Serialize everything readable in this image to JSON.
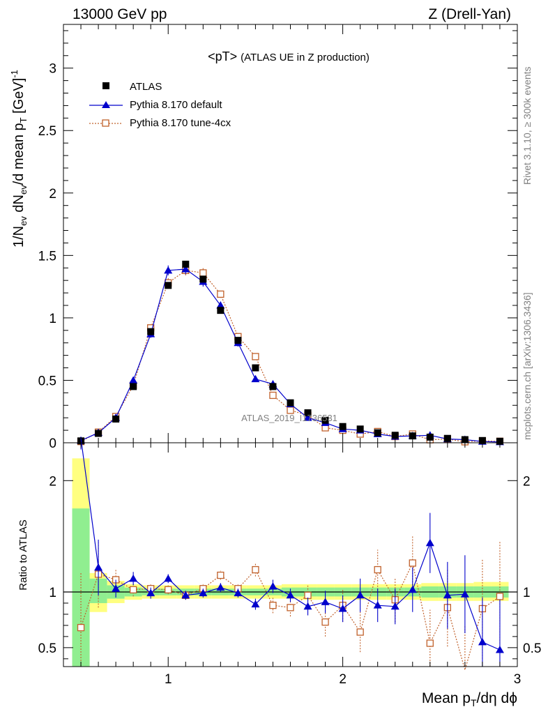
{
  "header": {
    "left": "13000 GeV pp",
    "right": "Z (Drell-Yan)"
  },
  "side": {
    "top": "Rivet 3.1.10, ≥ 300k events",
    "bottom": "mcplots.cern.ch [arXiv:1306.3436]"
  },
  "watermark": "ATLAS_2019_I1736531",
  "chart_data": [
    {
      "type": "line",
      "title": "<pT>",
      "subtitle": "(ATLAS UE in Z production)",
      "ylabel": {
        "a": "1/N",
        "a_sub": "ev",
        "b": " dN",
        "b_sub": "ev",
        "c": "/d mean p",
        "c_sub": "T",
        "d": " [GeV]",
        "d_sup": "-1"
      },
      "xlabel": {
        "a": "Mean p",
        "a_sub": "T",
        "b": "/dη dϕ"
      },
      "xlim": [
        0.4,
        3.0
      ],
      "ylim": [
        0,
        3.35
      ],
      "xticks": [
        "1",
        "2",
        "3"
      ],
      "yticks": [
        "0",
        "0.5",
        "1",
        "1.5",
        "2",
        "2.5",
        "3"
      ],
      "legend": {
        "placement": "top-left",
        "entries": [
          "ATLAS",
          "Pythia 8.170 default",
          "Pythia 8.170 tune-4cx"
        ]
      },
      "series": [
        {
          "name": "ATLAS",
          "color": "#000000",
          "marker": "square",
          "x": [
            0.5,
            0.6,
            0.7,
            0.8,
            0.9,
            1.0,
            1.1,
            1.2,
            1.3,
            1.4,
            1.5,
            1.6,
            1.7,
            1.8,
            1.9,
            2.0,
            2.1,
            2.2,
            2.3,
            2.4,
            2.5,
            2.6,
            2.7,
            2.8,
            2.9
          ],
          "y": [
            0.015,
            0.075,
            0.19,
            0.45,
            0.89,
            1.26,
            1.43,
            1.31,
            1.06,
            0.82,
            0.6,
            0.45,
            0.32,
            0.24,
            0.18,
            0.13,
            0.11,
            0.08,
            0.06,
            0.055,
            0.045,
            0.035,
            0.025,
            0.018,
            0.012
          ]
        },
        {
          "name": "Pythia 8.170 default",
          "color": "#0000cc",
          "marker": "triangle",
          "x": [
            0.5,
            0.6,
            0.7,
            0.8,
            0.9,
            1.0,
            1.1,
            1.2,
            1.3,
            1.4,
            1.5,
            1.6,
            1.7,
            1.8,
            1.9,
            2.0,
            2.1,
            2.2,
            2.3,
            2.4,
            2.5,
            2.6,
            2.7,
            2.8,
            2.9
          ],
          "y": [
            0.018,
            0.08,
            0.2,
            0.5,
            0.87,
            1.38,
            1.39,
            1.29,
            1.1,
            0.8,
            0.51,
            0.47,
            0.31,
            0.2,
            0.16,
            0.11,
            0.1,
            0.07,
            0.05,
            0.055,
            0.06,
            0.03,
            0.025,
            0.01,
            0.006
          ],
          "yerr": [
            0.005,
            0.01,
            0.015,
            0.02,
            0.03,
            0.04,
            0.04,
            0.04,
            0.03,
            0.03,
            0.02,
            0.02,
            0.015,
            0.012,
            0.01,
            0.01,
            0.008,
            0.007,
            0.006,
            0.006,
            0.006,
            0.005,
            0.005,
            0.004,
            0.003
          ]
        },
        {
          "name": "Pythia 8.170 tune-4cx",
          "color": "#c0602a",
          "marker": "open-square",
          "x": [
            0.5,
            0.6,
            0.7,
            0.8,
            0.9,
            1.0,
            1.1,
            1.2,
            1.3,
            1.4,
            1.5,
            1.6,
            1.7,
            1.8,
            1.9,
            2.0,
            2.1,
            2.2,
            2.3,
            2.4,
            2.5,
            2.6,
            2.7,
            2.8,
            2.9
          ],
          "y": [
            0.01,
            0.085,
            0.21,
            0.46,
            0.92,
            1.28,
            1.38,
            1.36,
            1.19,
            0.85,
            0.69,
            0.38,
            0.26,
            0.22,
            0.12,
            0.1,
            0.07,
            0.09,
            0.05,
            0.07,
            0.024,
            0.03,
            0.008,
            0.015,
            0.012
          ],
          "yerr": [
            0.005,
            0.01,
            0.015,
            0.02,
            0.03,
            0.04,
            0.04,
            0.04,
            0.03,
            0.03,
            0.025,
            0.02,
            0.015,
            0.012,
            0.01,
            0.01,
            0.008,
            0.008,
            0.006,
            0.007,
            0.006,
            0.005,
            0.005,
            0.004,
            0.003
          ]
        }
      ]
    },
    {
      "type": "line",
      "ylabel": "Ratio to ATLAS",
      "xlim": [
        0.4,
        3.0
      ],
      "ylim": [
        0.33,
        2.34
      ],
      "yticks": [
        "0.5",
        "1",
        "2"
      ],
      "bands": {
        "colors": {
          "stat": "#90ee90",
          "total": "#ffff80"
        },
        "edges": [
          0.45,
          0.55,
          0.65,
          0.75,
          0.85,
          0.95,
          1.05,
          1.15,
          1.25,
          1.35,
          1.45,
          1.55,
          1.65,
          1.75,
          1.85,
          1.95,
          2.05,
          2.15,
          2.25,
          2.35,
          2.45,
          2.55,
          2.65,
          2.75,
          2.85,
          2.95
        ],
        "green_lo": [
          0.33,
          0.9,
          0.94,
          0.96,
          0.97,
          0.97,
          0.97,
          0.97,
          0.97,
          0.97,
          0.97,
          0.97,
          0.96,
          0.96,
          0.96,
          0.96,
          0.96,
          0.96,
          0.96,
          0.96,
          0.95,
          0.95,
          0.95,
          0.95,
          0.95
        ],
        "green_hi": [
          1.75,
          1.12,
          1.06,
          1.04,
          1.03,
          1.03,
          1.03,
          1.03,
          1.03,
          1.03,
          1.03,
          1.03,
          1.04,
          1.04,
          1.04,
          1.04,
          1.04,
          1.04,
          1.04,
          1.04,
          1.05,
          1.05,
          1.05,
          1.05,
          1.05
        ],
        "yellow_lo": [
          0.33,
          0.82,
          0.9,
          0.93,
          0.94,
          0.94,
          0.94,
          0.94,
          0.94,
          0.94,
          0.94,
          0.94,
          0.94,
          0.93,
          0.93,
          0.93,
          0.93,
          0.93,
          0.93,
          0.93,
          0.92,
          0.92,
          0.92,
          0.92,
          0.92
        ],
        "yellow_hi": [
          2.2,
          1.17,
          1.1,
          1.07,
          1.06,
          1.06,
          1.06,
          1.06,
          1.06,
          1.06,
          1.06,
          1.06,
          1.07,
          1.07,
          1.07,
          1.07,
          1.07,
          1.07,
          1.07,
          1.07,
          1.08,
          1.08,
          1.08,
          1.09,
          1.09
        ]
      },
      "series": [
        {
          "name": "Pythia 8.170 default",
          "color": "#0000cc",
          "marker": "triangle",
          "x": [
            0.5,
            0.6,
            0.7,
            0.8,
            0.9,
            1.0,
            1.1,
            1.2,
            1.3,
            1.4,
            1.5,
            1.6,
            1.7,
            1.8,
            1.9,
            2.0,
            2.1,
            2.2,
            2.3,
            2.4,
            2.5,
            2.6,
            2.7,
            2.8,
            2.9
          ],
          "y": [
            2.38,
            1.22,
            1.03,
            1.12,
            0.99,
            1.12,
            0.97,
            0.99,
            1.04,
            0.99,
            0.89,
            1.05,
            0.97,
            0.87,
            0.91,
            0.85,
            0.97,
            0.88,
            0.87,
            1.02,
            1.44,
            0.97,
            0.98,
            0.55,
            0.48
          ],
          "yerr": [
            0.1,
            0.25,
            0.08,
            0.06,
            0.05,
            0.04,
            0.04,
            0.04,
            0.04,
            0.04,
            0.05,
            0.06,
            0.06,
            0.08,
            0.1,
            0.12,
            0.15,
            0.15,
            0.16,
            0.2,
            0.27,
            0.3,
            0.35,
            0.4,
            0.45
          ]
        },
        {
          "name": "Pythia 8.170 tune-4cx",
          "color": "#c0602a",
          "marker": "open-square",
          "x": [
            0.5,
            0.6,
            0.7,
            0.8,
            0.9,
            1.0,
            1.1,
            1.2,
            1.3,
            1.4,
            1.5,
            1.6,
            1.7,
            1.8,
            1.9,
            2.0,
            2.1,
            2.2,
            2.3,
            2.4,
            2.5,
            2.6,
            2.7,
            2.8,
            2.9
          ],
          "y": [
            0.68,
            1.16,
            1.11,
            1.02,
            1.03,
            1.02,
            0.97,
            1.03,
            1.15,
            1.03,
            1.2,
            0.88,
            0.86,
            0.97,
            0.73,
            0.88,
            0.64,
            1.2,
            0.93,
            1.26,
            0.54,
            0.86,
            0.3,
            0.85,
            0.96
          ],
          "yerr": [
            0.5,
            0.3,
            0.1,
            0.06,
            0.05,
            0.04,
            0.04,
            0.04,
            0.04,
            0.04,
            0.06,
            0.07,
            0.08,
            0.1,
            0.13,
            0.15,
            0.18,
            0.18,
            0.2,
            0.25,
            0.3,
            0.35,
            0.4,
            0.45,
            0.5
          ]
        }
      ]
    }
  ]
}
